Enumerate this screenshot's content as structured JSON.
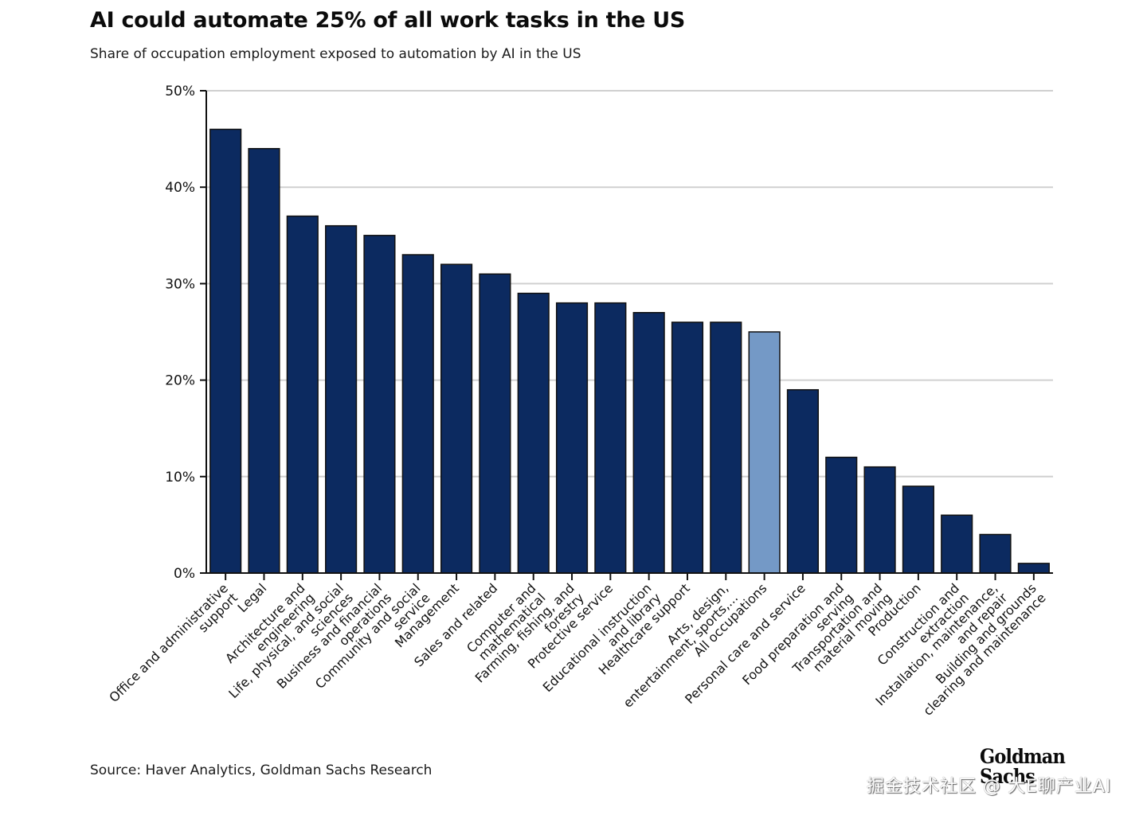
{
  "header": {
    "title": "AI could automate 25% of all work tasks in the US",
    "subtitle": "Share of occupation employment exposed to automation by AI in the US"
  },
  "footer": {
    "source": "Source: Haver Analytics, Goldman Sachs Research",
    "logo_line1": "Goldman",
    "logo_line2": "Sachs",
    "watermark": "掘金技术社区 @ 大E聊产业AI"
  },
  "colors": {
    "bar": "#0c2a60",
    "highlight_bar": "#7499c6",
    "bar_outline": "#111111",
    "grid": "#d0d0d0",
    "axis": "#111111"
  },
  "chart_data": {
    "type": "bar",
    "title": "AI could automate 25% of all work tasks in the US",
    "subtitle": "Share of occupation employment exposed to automation by AI in the US",
    "xlabel": "",
    "ylabel": "",
    "ylim": [
      0,
      50
    ],
    "yticks": [
      0,
      10,
      20,
      30,
      40,
      50
    ],
    "ytick_labels": [
      "0%",
      "10%",
      "20%",
      "30%",
      "40%",
      "50%"
    ],
    "grid": true,
    "highlight_category": "All occupations",
    "categories": [
      "Office and administrative support",
      "Legal",
      "Architecture and engineering",
      "Life, physical, and social sciences",
      "Business and financial operations",
      "Community and social service",
      "Management",
      "Sales and related",
      "Computer and mathematical",
      "Farming, fishing, and forestry",
      "Protective service",
      "Educational instruction and library",
      "Healthcare support",
      "Arts, design, entertainment, sports,...",
      "All occupations",
      "Personal care and service",
      "Food preparation and serving",
      "Transportation and material moving",
      "Production",
      "Construction and extraction",
      "Installation, maintenance, and repair",
      "Building and grounds clearing and maintenance"
    ],
    "category_label_lines": [
      [
        "Office and administrative",
        "support"
      ],
      [
        "Legal"
      ],
      [
        "Architecture and",
        "engineering"
      ],
      [
        "Life, physical, and social",
        "sciences"
      ],
      [
        "Business and financial",
        "operations"
      ],
      [
        "Community and social",
        "service"
      ],
      [
        "Management"
      ],
      [
        "Sales and related"
      ],
      [
        "Computer and",
        "mathematical"
      ],
      [
        "Farming, fishing, and",
        "forestry"
      ],
      [
        "Protective service"
      ],
      [
        "Educational instruction",
        "and library"
      ],
      [
        "Healthcare support"
      ],
      [
        "Arts, design,",
        "entertainment, sports,..."
      ],
      [
        "All occupations"
      ],
      [
        "Personal care and service"
      ],
      [
        "Food preparation and",
        "serving"
      ],
      [
        "Transportation and",
        "material moving"
      ],
      [
        "Production"
      ],
      [
        "Construction and",
        "extraction"
      ],
      [
        "Installation, maintenance,",
        "and repair"
      ],
      [
        "Building and grounds",
        "clearing and maintenance"
      ]
    ],
    "values": [
      46,
      44,
      37,
      36,
      35,
      33,
      32,
      31,
      29,
      28,
      28,
      27,
      26,
      26,
      25,
      19,
      12,
      11,
      9,
      6,
      4,
      1
    ],
    "unit": "%"
  }
}
